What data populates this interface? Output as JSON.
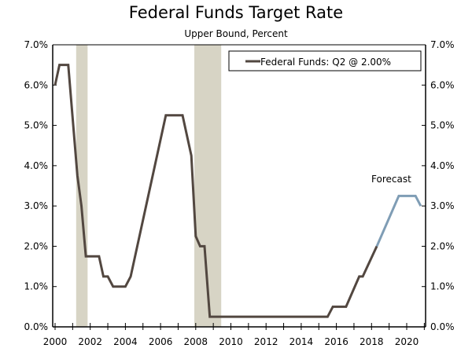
{
  "chart_data": {
    "type": "line",
    "title": "Federal Funds Target Rate",
    "subtitle": "Upper Bound, Percent",
    "xlim": [
      1999.85,
      2021.1
    ],
    "ylim": [
      0,
      7
    ],
    "y_ticks": [
      "0.0%",
      "1.0%",
      "2.0%",
      "3.0%",
      "4.0%",
      "5.0%",
      "6.0%",
      "7.0%"
    ],
    "x_ticks": [
      "2000",
      "2002",
      "2004",
      "2006",
      "2008",
      "2010",
      "2012",
      "2014",
      "2016",
      "2018",
      "2020"
    ],
    "grid": false,
    "legend": {
      "label": "Federal Funds: Q2 @ 2.00%",
      "placement": "top-right"
    },
    "annotation": "Forecast",
    "recessions": [
      [
        2001.2,
        2001.85
      ],
      [
        2007.92,
        2009.45
      ]
    ],
    "series": [
      {
        "name": "Federal Funds: Q2 @ 2.00%",
        "color": "#524740",
        "x": [
          2000.0,
          2000.25,
          2000.75,
          2001.27,
          2001.5,
          2001.75,
          2002.5,
          2002.75,
          2003.0,
          2003.3,
          2004.0,
          2004.3,
          2006.3,
          2007.25,
          2007.75,
          2008.0,
          2008.25,
          2008.5,
          2008.8,
          2015.5,
          2015.8,
          2016.55,
          2017.3,
          2017.5,
          2018.3
        ],
        "y": [
          6.0,
          6.5,
          6.5,
          3.75,
          3.0,
          1.75,
          1.75,
          1.25,
          1.25,
          1.0,
          1.0,
          1.25,
          5.25,
          5.25,
          4.25,
          2.25,
          2.0,
          2.0,
          0.25,
          0.25,
          0.5,
          0.5,
          1.25,
          1.25,
          2.0
        ]
      },
      {
        "color": "#7f9db5",
        "x": [
          2018.3,
          2019.55,
          2020.5,
          2020.8
        ],
        "y": [
          2.0,
          3.25,
          3.25,
          3.0
        ]
      }
    ],
    "recession_color": "#d7d4c5"
  }
}
